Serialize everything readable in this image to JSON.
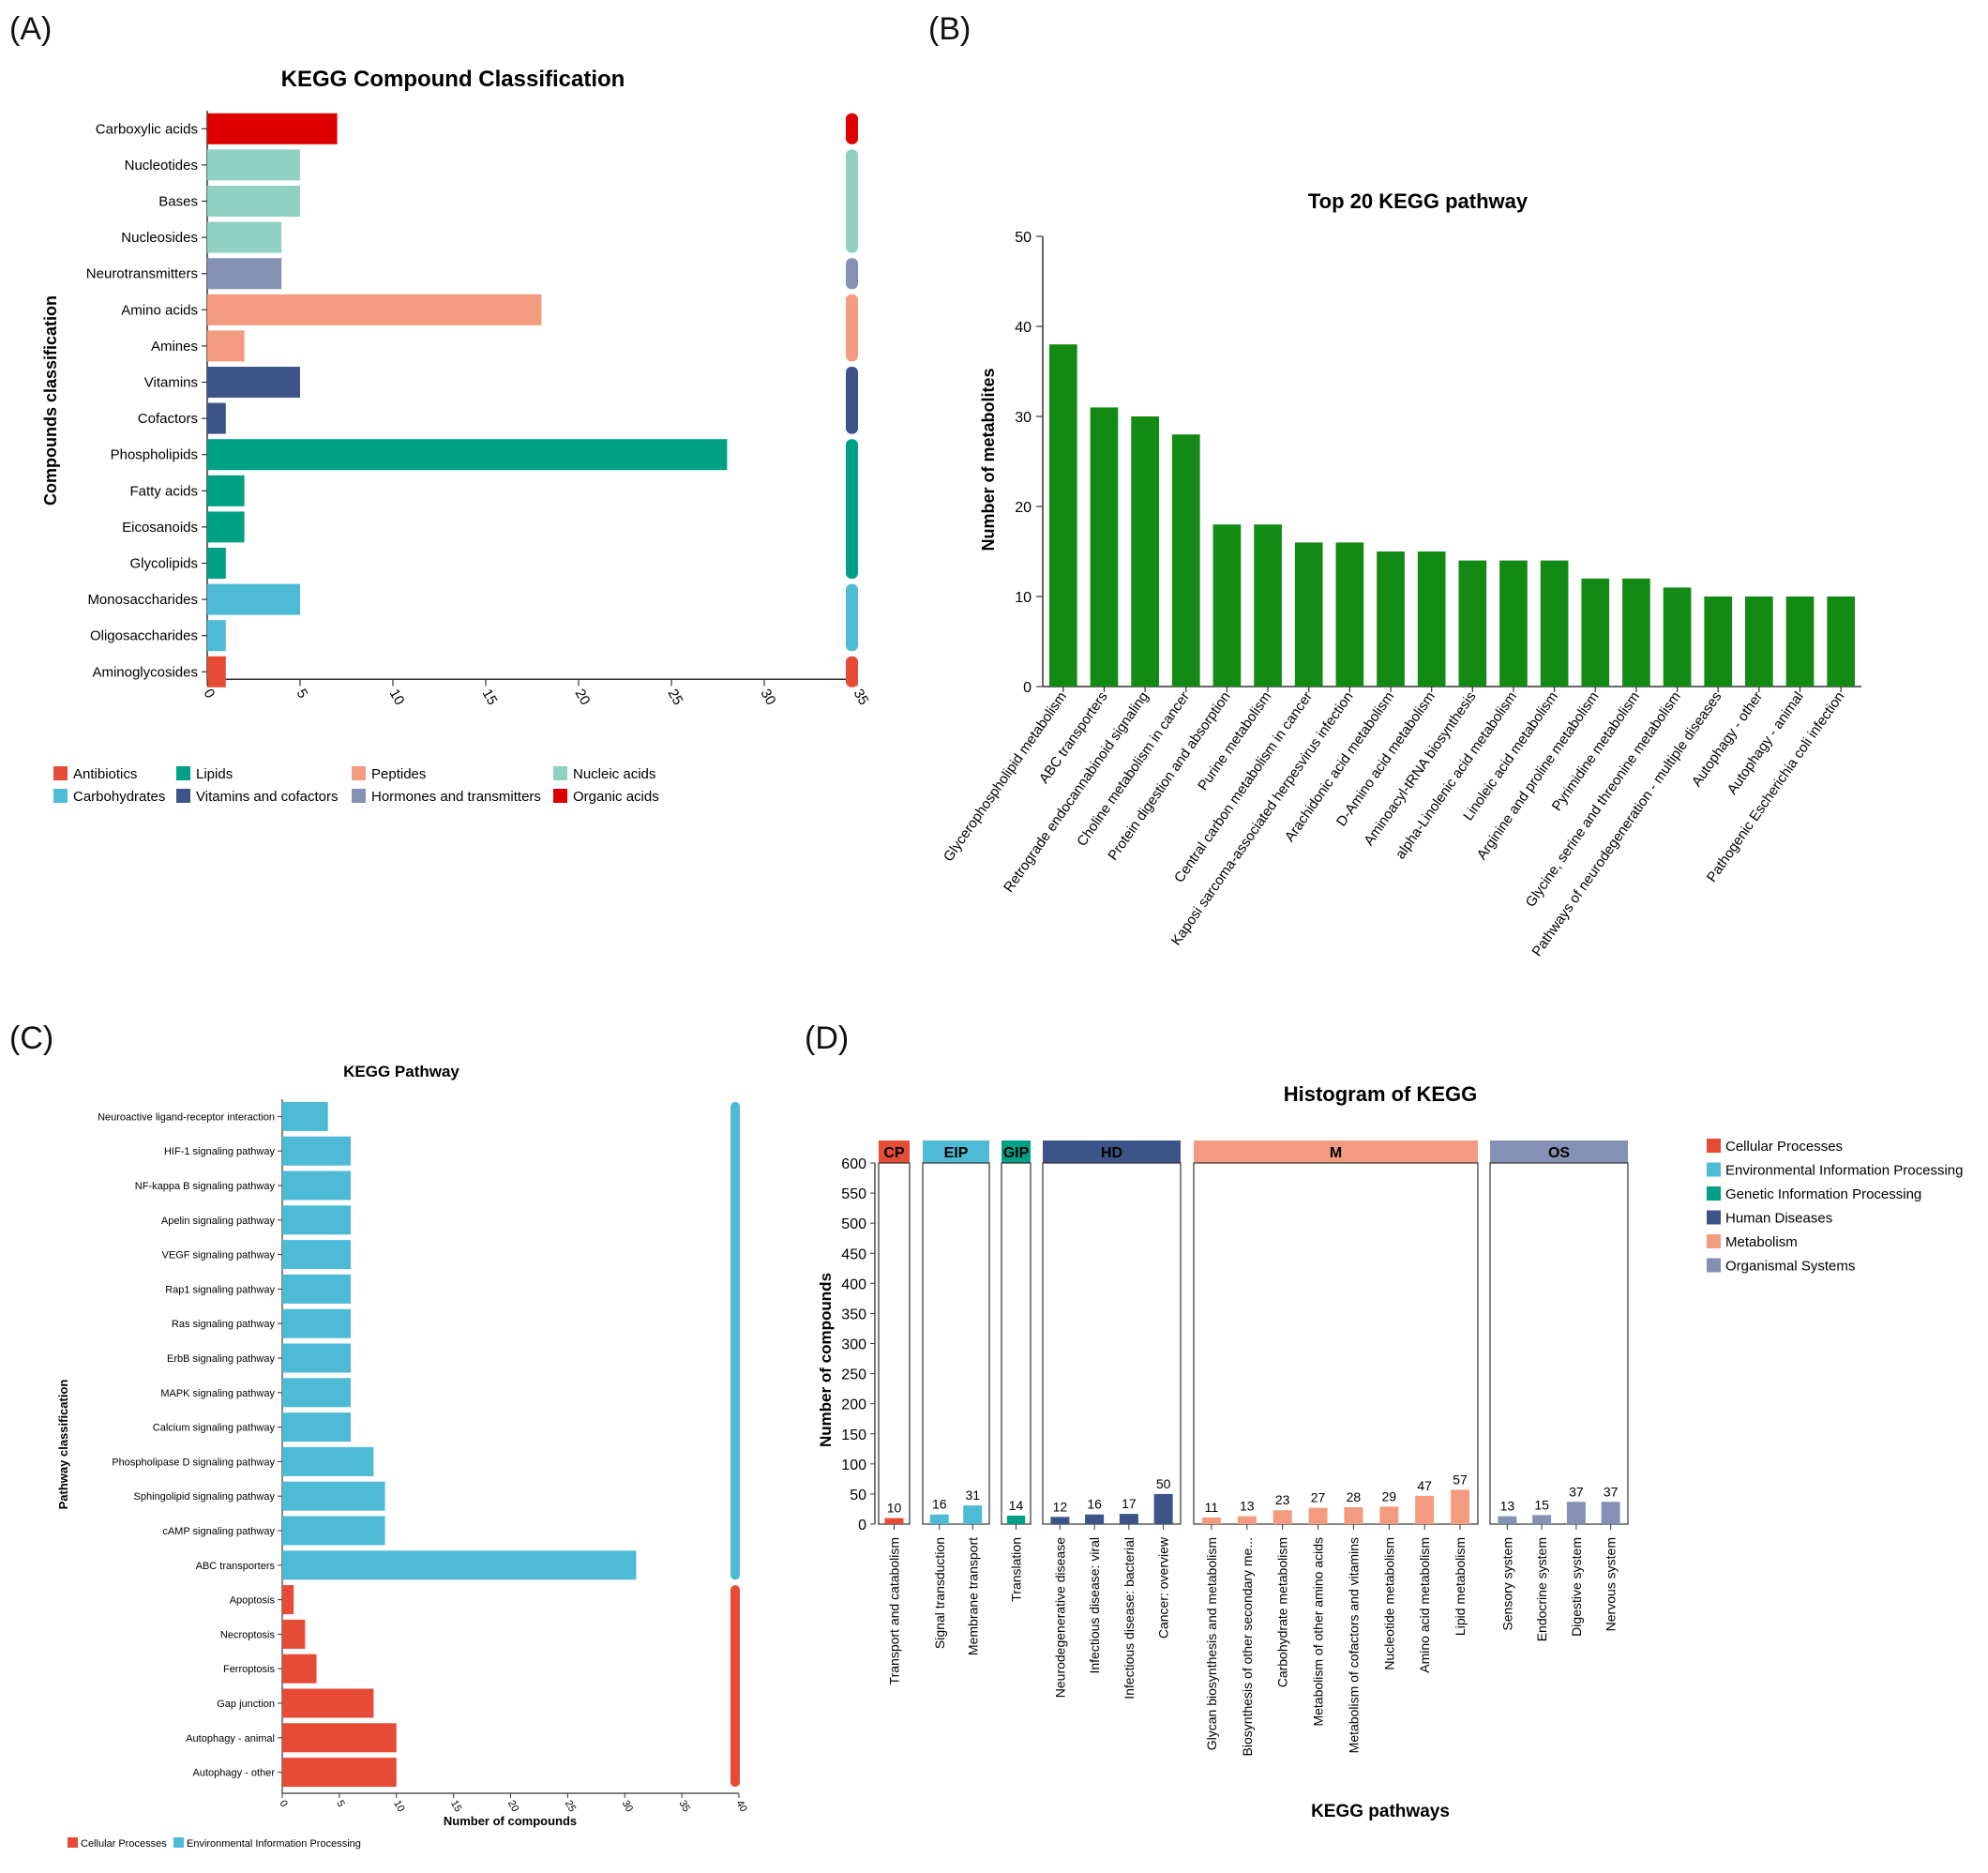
{
  "panels": {
    "a": "(A)",
    "b": "(B)",
    "c": "(C)",
    "d": "(D)"
  },
  "chart_data": [
    {
      "id": "A",
      "type": "bar",
      "orientation": "horizontal",
      "title": "KEGG Compound Classification",
      "xlabel": "",
      "ylabel": "Compounds classification",
      "xlim": [
        0,
        35
      ],
      "xticks": [
        0,
        5,
        10,
        15,
        20,
        25,
        30,
        35
      ],
      "categories": [
        "Carboxylic acids",
        "Nucleotides",
        "Bases",
        "Nucleosides",
        "Neurotransmitters",
        "Amino acids",
        "Amines",
        "Vitamins",
        "Cofactors",
        "Phospholipids",
        "Fatty acids",
        "Eicosanoids",
        "Glycolipids",
        "Monosaccharides",
        "Oligosaccharides",
        "Aminoglycosides"
      ],
      "values": [
        7,
        5,
        5,
        4,
        4,
        18,
        2,
        5,
        1,
        28,
        2,
        2,
        1,
        5,
        1,
        1
      ],
      "groups": [
        "Organic acids",
        "Nucleic acids",
        "Nucleic acids",
        "Nucleic acids",
        "Hormones and transmitters",
        "Peptides",
        "Peptides",
        "Vitamins and cofactors",
        "Vitamins and cofactors",
        "Lipids",
        "Lipids",
        "Lipids",
        "Lipids",
        "Carbohydrates",
        "Carbohydrates",
        "Antibiotics"
      ],
      "legend": [
        {
          "name": "Antibiotics",
          "color": "#e64b35"
        },
        {
          "name": "Lipids",
          "color": "#00a087"
        },
        {
          "name": "Peptides",
          "color": "#f39b7f"
        },
        {
          "name": "Nucleic acids",
          "color": "#91d1c2"
        },
        {
          "name": "Carbohydrates",
          "color": "#4dbbd5"
        },
        {
          "name": "Vitamins and cofactors",
          "color": "#3c5488"
        },
        {
          "name": "Hormones and transmitters",
          "color": "#8491b4"
        },
        {
          "name": "Organic acids",
          "color": "#dc0000"
        }
      ],
      "legend_position": "bottom",
      "grid": false
    },
    {
      "id": "B",
      "type": "bar",
      "title": "Top 20 KEGG pathway",
      "xlabel": "",
      "ylabel": "Number of metabolites",
      "ylim": [
        0,
        50
      ],
      "yticks": [
        0,
        10,
        20,
        30,
        40,
        50
      ],
      "color": "#138a13",
      "categories": [
        "Glycerophospholipid metabolism",
        "ABC transporters",
        "Retrograde endocannabinoid signaling",
        "Choline metabolism in cancer",
        "Protein digestion and absorption",
        "Purine metabolism",
        "Central carbon metabolism in cancer",
        "Kaposi sarcoma-associated herpesvirus infection",
        "Arachidonic acid metabolism",
        "D-Amino acid metabolism",
        "Aminoacyl-tRNA biosynthesis",
        "alpha-Linolenic acid metabolism",
        "Linoleic acid metabolism",
        "Arginine and proline metabolism",
        "Pyrimidine metabolism",
        "Glycine, serine and threonine metabolism",
        "Pathways of neurodegeneration - multiple diseases",
        "Autophagy - other",
        "Autophagy - animal",
        "Pathogenic Escherichia coli infection"
      ],
      "values": [
        38,
        31,
        30,
        28,
        18,
        18,
        16,
        16,
        15,
        15,
        14,
        14,
        14,
        12,
        12,
        11,
        10,
        10,
        10,
        10
      ],
      "grid": false
    },
    {
      "id": "C",
      "type": "bar",
      "orientation": "horizontal",
      "title": "KEGG Pathway",
      "xlabel": "Number of compounds",
      "ylabel": "Pathway classification",
      "xlim": [
        0,
        40
      ],
      "xticks": [
        0,
        5,
        10,
        15,
        20,
        25,
        30,
        35,
        40
      ],
      "categories": [
        "Neuroactive ligand-receptor interaction",
        "HIF-1 signaling pathway",
        "NF-kappa B signaling pathway",
        "Apelin signaling pathway",
        "VEGF signaling pathway",
        "Rap1 signaling pathway",
        "Ras signaling pathway",
        "ErbB signaling pathway",
        "MAPK signaling pathway",
        "Calcium signaling pathway",
        "Phospholipase D signaling pathway",
        "Sphingolipid signaling pathway",
        "cAMP signaling pathway",
        "ABC transporters",
        "Apoptosis",
        "Necroptosis",
        "Ferroptosis",
        "Gap junction",
        "Autophagy - animal",
        "Autophagy - other"
      ],
      "values": [
        4,
        6,
        6,
        6,
        6,
        6,
        6,
        6,
        6,
        6,
        8,
        9,
        9,
        31,
        1,
        2,
        3,
        8,
        10,
        10
      ],
      "groups": [
        "Environmental Information Processing",
        "Environmental Information Processing",
        "Environmental Information Processing",
        "Environmental Information Processing",
        "Environmental Information Processing",
        "Environmental Information Processing",
        "Environmental Information Processing",
        "Environmental Information Processing",
        "Environmental Information Processing",
        "Environmental Information Processing",
        "Environmental Information Processing",
        "Environmental Information Processing",
        "Environmental Information Processing",
        "Environmental Information Processing",
        "Cellular Processes",
        "Cellular Processes",
        "Cellular Processes",
        "Cellular Processes",
        "Cellular Processes",
        "Cellular Processes"
      ],
      "legend": [
        {
          "name": "Cellular Processes",
          "color": "#e64b35"
        },
        {
          "name": "Environmental Information Processing",
          "color": "#4dbbd5"
        }
      ],
      "legend_position": "bottom-left",
      "grid": false
    },
    {
      "id": "D",
      "type": "bar",
      "title": "Histogram of KEGG",
      "xlabel": "KEGG pathways",
      "ylabel": "Number of compounds",
      "ylim": [
        0,
        600
      ],
      "yticks": [
        0,
        50,
        100,
        150,
        200,
        250,
        300,
        350,
        400,
        450,
        500,
        550,
        600
      ],
      "facets": [
        {
          "code": "CP",
          "group": "Cellular Processes",
          "color": "#e64b35",
          "categories": [
            "Transport and catabolism"
          ],
          "values": [
            10
          ]
        },
        {
          "code": "EIP",
          "group": "Environmental Information Processing",
          "color": "#4dbbd5",
          "categories": [
            "Signal transduction",
            "Membrane transport"
          ],
          "values": [
            16,
            31
          ]
        },
        {
          "code": "GIP",
          "group": "Genetic Information Processing",
          "color": "#00a087",
          "categories": [
            "Translation"
          ],
          "values": [
            14
          ]
        },
        {
          "code": "HD",
          "group": "Human Diseases",
          "color": "#3c5488",
          "categories": [
            "Neurodegenerative disease",
            "Infectious disease: viral",
            "Infectious disease: bacterial",
            "Cancer: overview"
          ],
          "values": [
            12,
            16,
            17,
            50
          ]
        },
        {
          "code": "M",
          "group": "Metabolism",
          "color": "#f39b7f",
          "categories": [
            "Glycan biosynthesis and metabolism",
            "Biosynthesis of other secondary me...",
            "Carbohydrate metabolism",
            "Metabolism of other amino acids",
            "Metabolism of cofactors and vitamins",
            "Nucleotide metabolism",
            "Amino acid metabolism",
            "Lipid metabolism"
          ],
          "values": [
            11,
            13,
            23,
            27,
            28,
            29,
            47,
            57
          ]
        },
        {
          "code": "OS",
          "group": "Organismal Systems",
          "color": "#8491b4",
          "categories": [
            "Sensory system",
            "Endocrine system",
            "Digestive system",
            "Nervous system"
          ],
          "values": [
            13,
            15,
            37,
            37
          ]
        }
      ],
      "legend": [
        {
          "name": "Cellular Processes",
          "color": "#e64b35"
        },
        {
          "name": "Environmental Information Processing",
          "color": "#4dbbd5"
        },
        {
          "name": "Genetic Information Processing",
          "color": "#00a087"
        },
        {
          "name": "Human Diseases",
          "color": "#3c5488"
        },
        {
          "name": "Metabolism",
          "color": "#f39b7f"
        },
        {
          "name": "Organismal Systems",
          "color": "#8491b4"
        }
      ],
      "legend_position": "right",
      "grid": false
    }
  ]
}
